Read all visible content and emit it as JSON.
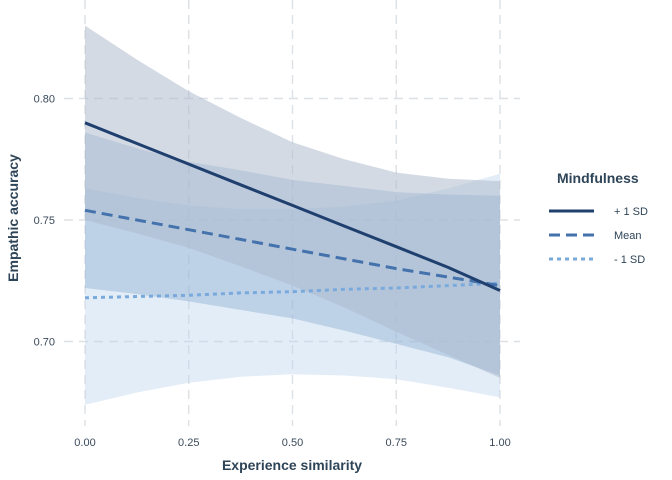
{
  "chart_data": {
    "type": "line",
    "xlabel": "Experience similarity",
    "ylabel": "Empathic accuracy",
    "xlim": [
      -0.0,
      1.0
    ],
    "ylim": [
      0.665,
      0.835
    ],
    "x_ticks": [
      0.0,
      0.25,
      0.5,
      0.75,
      1.0
    ],
    "x_tick_labels": [
      "0.00",
      "0.25",
      "0.50",
      "0.75",
      "1.00"
    ],
    "y_ticks": [
      0.7,
      0.75,
      0.8
    ],
    "y_tick_labels": [
      "0.70",
      "0.75",
      "0.80"
    ],
    "grid": true,
    "legend": {
      "title": "Mindfulness",
      "placement": "right"
    },
    "x": [
      0.0,
      0.125,
      0.25,
      0.375,
      0.5,
      0.625,
      0.75,
      0.875,
      1.0
    ],
    "series": [
      {
        "name": "+ 1 SD",
        "color": "#1f3f6e",
        "line_style": "solid",
        "band_color": "#aebccd",
        "values": [
          0.79,
          0.7815,
          0.773,
          0.7645,
          0.756,
          0.7475,
          0.739,
          0.7305,
          0.721
        ],
        "lower": [
          0.75,
          0.7445,
          0.7385,
          0.731,
          0.723,
          0.714,
          0.704,
          0.6945,
          0.685
        ],
        "upper": [
          0.83,
          0.816,
          0.803,
          0.792,
          0.782,
          0.775,
          0.7695,
          0.767,
          0.766
        ]
      },
      {
        "name": "Mean",
        "color": "#4472ad",
        "line_style": "dashed",
        "band_color": "#8fafd3",
        "values": [
          0.754,
          0.75,
          0.746,
          0.742,
          0.738,
          0.734,
          0.73,
          0.7265,
          0.723
        ],
        "lower": [
          0.722,
          0.7195,
          0.7165,
          0.713,
          0.7095,
          0.7045,
          0.699,
          0.6935,
          0.686
        ],
        "upper": [
          0.786,
          0.7795,
          0.774,
          0.7705,
          0.7665,
          0.764,
          0.7615,
          0.7605,
          0.76
        ]
      },
      {
        "name": "- 1 SD",
        "color": "#7aa9dc",
        "line_style": "dotted",
        "band_color": "#bcd3ec",
        "values": [
          0.718,
          0.7185,
          0.719,
          0.72,
          0.7205,
          0.7215,
          0.722,
          0.723,
          0.724
        ],
        "lower": [
          0.674,
          0.679,
          0.683,
          0.6855,
          0.6865,
          0.686,
          0.6845,
          0.681,
          0.677
        ],
        "upper": [
          0.763,
          0.759,
          0.756,
          0.7545,
          0.7545,
          0.7555,
          0.758,
          0.763,
          0.769
        ]
      }
    ]
  }
}
